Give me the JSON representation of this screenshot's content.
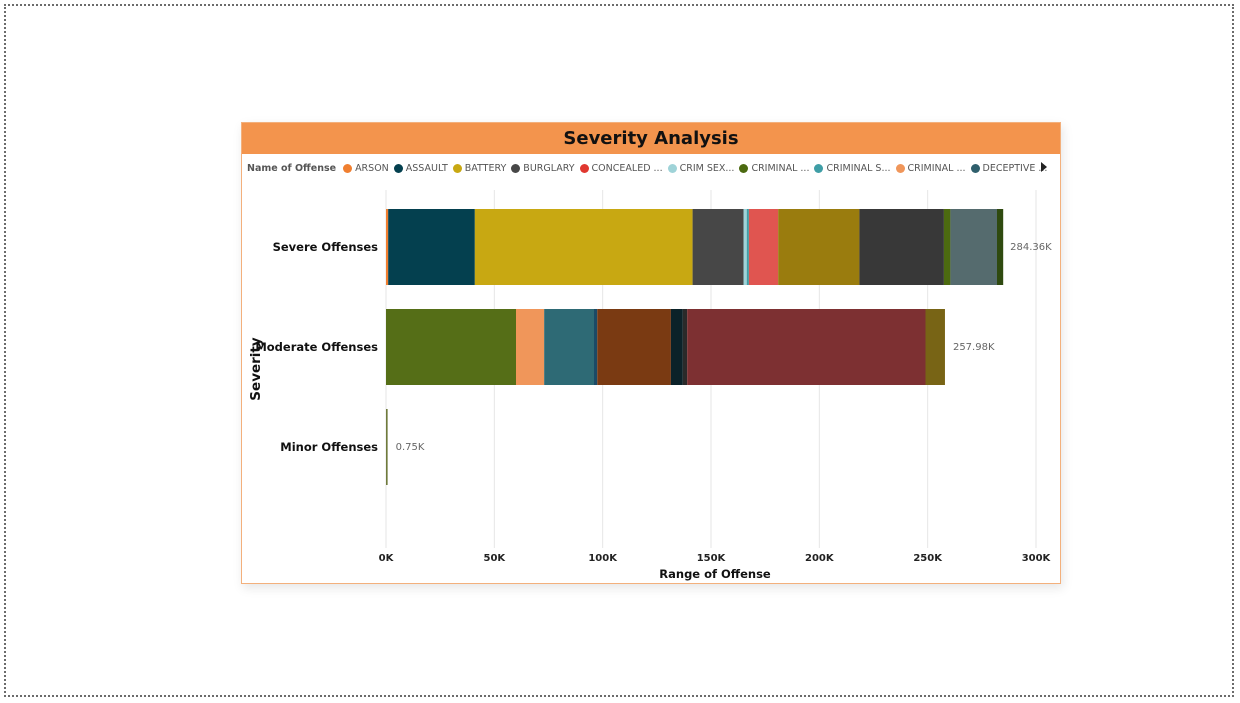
{
  "chart_data": {
    "type": "bar",
    "orientation": "horizontal",
    "stacked": true,
    "title": "Severity Analysis",
    "xlabel": "Range of Offense",
    "ylabel": "Severity",
    "xlim": [
      0,
      300000
    ],
    "xticks": [
      0,
      50000,
      100000,
      150000,
      200000,
      250000,
      300000
    ],
    "xtick_labels": [
      "0K",
      "50K",
      "100K",
      "150K",
      "200K",
      "250K",
      "300K"
    ],
    "grid": true,
    "legend_title": "Name of Offense",
    "legend_position": "top",
    "legend": [
      {
        "label": "ARSON",
        "color": "#f07f30"
      },
      {
        "label": "ASSAULT",
        "color": "#04404f"
      },
      {
        "label": "BATTERY",
        "color": "#c8a812"
      },
      {
        "label": "BURGLARY",
        "color": "#474747"
      },
      {
        "label": "CONCEALED ...",
        "color": "#e03830"
      },
      {
        "label": "CRIM SEX...",
        "color": "#9fd3d8"
      },
      {
        "label": "CRIMINAL ...",
        "color": "#4c6a10"
      },
      {
        "label": "CRIMINAL S...",
        "color": "#3f9ea6"
      },
      {
        "label": "CRIMINAL ...",
        "color": "#f0965a"
      },
      {
        "label": "DECEPTIVE ...",
        "color": "#2f5f6c"
      }
    ],
    "categories": [
      "Severe Offenses",
      "Moderate Offenses",
      "Minor Offenses"
    ],
    "totals": [
      284360,
      257980,
      750
    ],
    "total_labels": [
      "284.36K",
      "257.98K",
      "0.75K"
    ],
    "segments": [
      [
        {
          "value": 1000,
          "color": "#f07f30"
        },
        {
          "value": 40000,
          "color": "#04404f"
        },
        {
          "value": 100500,
          "color": "#c8a812"
        },
        {
          "value": 23500,
          "color": "#474747"
        },
        {
          "value": 1500,
          "color": "#9fd3d8"
        },
        {
          "value": 1000,
          "color": "#3f9ea6"
        },
        {
          "value": 13500,
          "color": "#e05550"
        },
        {
          "value": 37500,
          "color": "#9a7c0e"
        },
        {
          "value": 39000,
          "color": "#383838"
        },
        {
          "value": 3000,
          "color": "#4c6a10"
        },
        {
          "value": 21500,
          "color": "#556b6e"
        },
        {
          "value": 2860,
          "color": "#2f4a10"
        }
      ],
      [
        {
          "value": 60000,
          "color": "#556e17"
        },
        {
          "value": 13000,
          "color": "#f0965a"
        },
        {
          "value": 23000,
          "color": "#2e6a75"
        },
        {
          "value": 1500,
          "color": "#1b4a66"
        },
        {
          "value": 34000,
          "color": "#7a3a12"
        },
        {
          "value": 5500,
          "color": "#0b2229"
        },
        {
          "value": 2000,
          "color": "#2a2a2a"
        },
        {
          "value": 110000,
          "color": "#7d3032"
        },
        {
          "value": 8980,
          "color": "#786415"
        }
      ],
      [
        {
          "value": 750,
          "color": "#6f7a3c"
        }
      ]
    ]
  }
}
